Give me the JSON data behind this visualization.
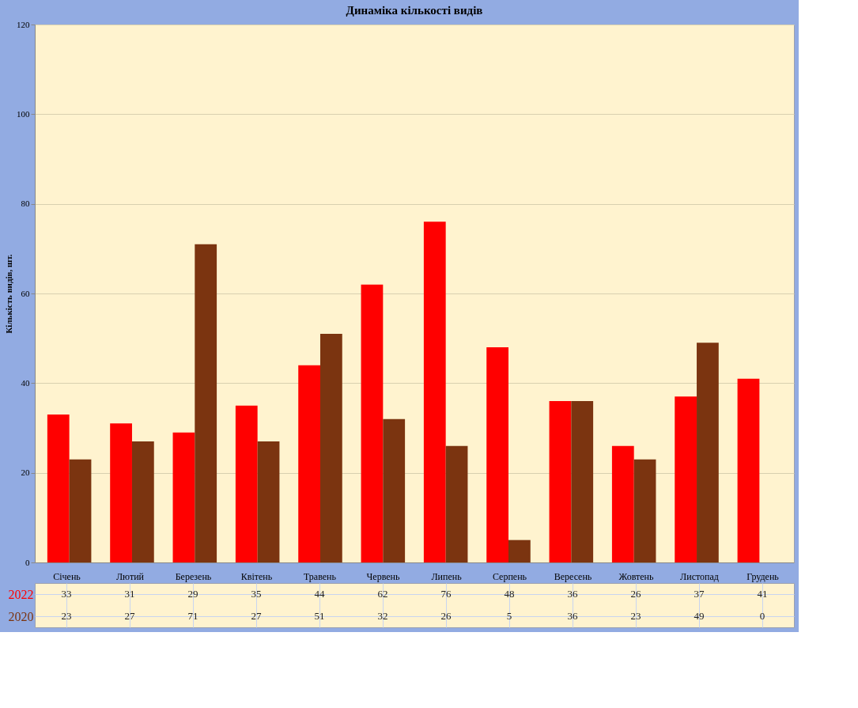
{
  "chart_data": {
    "type": "bar",
    "title": "Динаміка кількості видів",
    "ylabel": "Кількість видів, шт.",
    "categories": [
      "Січень",
      "Лютий",
      "Березень",
      "Квітень",
      "Травень",
      "Червень",
      "Липень",
      "Серпень",
      "Вересень",
      "Жовтень",
      "Листопад",
      "Грудень"
    ],
    "series": [
      {
        "name": "2022",
        "color": "#ff0000",
        "values": [
          33,
          31,
          29,
          35,
          44,
          62,
          76,
          48,
          36,
          26,
          37,
          41
        ]
      },
      {
        "name": "2020",
        "color": "#7b3410",
        "values": [
          23,
          27,
          71,
          27,
          51,
          32,
          26,
          5,
          36,
          23,
          49,
          0
        ]
      }
    ],
    "ylim": [
      0,
      120
    ],
    "yticks": [
      0,
      20,
      40,
      60,
      80,
      100,
      120
    ],
    "grid": "y",
    "data_labels": true,
    "legend": false
  }
}
